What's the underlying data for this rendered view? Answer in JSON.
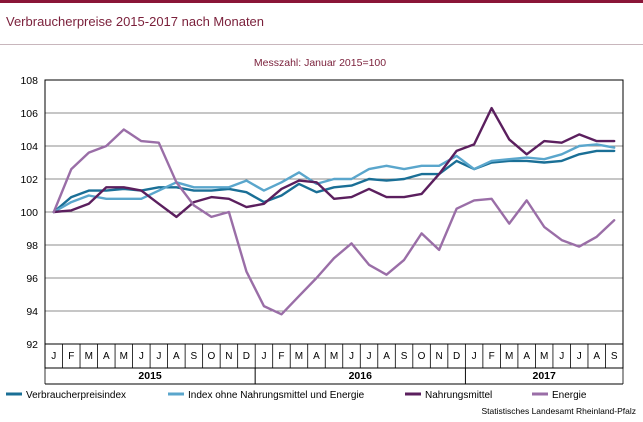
{
  "header": {
    "title": "Verbraucherpreise 2015-2017 nach Monaten"
  },
  "chart_data": {
    "type": "line",
    "subtitle": "Messzahl: Januar 2015=100",
    "ylim": [
      92,
      108
    ],
    "yticks": [
      92,
      94,
      96,
      98,
      100,
      102,
      104,
      106,
      108
    ],
    "grid": true,
    "categories": [
      "J",
      "F",
      "M",
      "A",
      "M",
      "J",
      "J",
      "A",
      "S",
      "O",
      "N",
      "D",
      "J",
      "F",
      "M",
      "A",
      "M",
      "J",
      "J",
      "A",
      "S",
      "O",
      "N",
      "D",
      "J",
      "F",
      "M",
      "A",
      "M",
      "J",
      "J",
      "A",
      "S"
    ],
    "years": [
      {
        "label": "2015",
        "start": 0,
        "end": 11
      },
      {
        "label": "2016",
        "start": 12,
        "end": 23
      },
      {
        "label": "2017",
        "start": 24,
        "end": 32
      }
    ],
    "legend_position": "bottom",
    "series": [
      {
        "name": "Verbraucherpreisindex",
        "color": "#1a6f96",
        "values": [
          100.0,
          100.9,
          101.3,
          101.3,
          101.4,
          101.3,
          101.5,
          101.5,
          101.3,
          101.3,
          101.4,
          101.2,
          100.6,
          101.0,
          101.7,
          101.2,
          101.5,
          101.6,
          102.0,
          101.9,
          102.0,
          102.3,
          102.3,
          103.1,
          102.6,
          103.0,
          103.1,
          103.1,
          103.0,
          103.1,
          103.5,
          103.7,
          103.7
        ]
      },
      {
        "name": "Index ohne Nahrungsmittel und Energie",
        "color": "#5aa6cc",
        "values": [
          100.0,
          100.6,
          101.0,
          100.8,
          100.8,
          100.8,
          101.3,
          101.8,
          101.5,
          101.5,
          101.5,
          101.9,
          101.3,
          101.8,
          102.4,
          101.7,
          102.0,
          102.0,
          102.6,
          102.8,
          102.6,
          102.8,
          102.8,
          103.4,
          102.6,
          103.1,
          103.2,
          103.3,
          103.2,
          103.5,
          104.0,
          104.1,
          103.9
        ]
      },
      {
        "name": "Nahrungsmittel",
        "color": "#5b1f5e",
        "values": [
          100.0,
          100.1,
          100.5,
          101.5,
          101.5,
          101.3,
          100.5,
          99.7,
          100.6,
          100.9,
          100.8,
          100.3,
          100.5,
          101.4,
          101.9,
          101.8,
          100.8,
          100.9,
          101.4,
          100.9,
          100.9,
          101.1,
          102.3,
          103.7,
          104.1,
          106.3,
          104.4,
          103.5,
          104.3,
          104.2,
          104.7,
          104.3,
          104.3
        ]
      },
      {
        "name": "Energie",
        "color": "#9a6ea7",
        "values": [
          100.0,
          102.6,
          103.6,
          104.0,
          105.0,
          104.3,
          104.2,
          101.8,
          100.4,
          99.7,
          100.0,
          96.4,
          94.3,
          93.8,
          94.9,
          96.0,
          97.2,
          98.1,
          96.8,
          96.2,
          97.1,
          98.7,
          97.7,
          100.2,
          100.7,
          100.8,
          99.3,
          100.7,
          99.1,
          98.3,
          97.9,
          98.5,
          99.5
        ]
      }
    ]
  },
  "footer": {
    "source": "Statistisches Landesamt Rheinland-Pfalz"
  }
}
